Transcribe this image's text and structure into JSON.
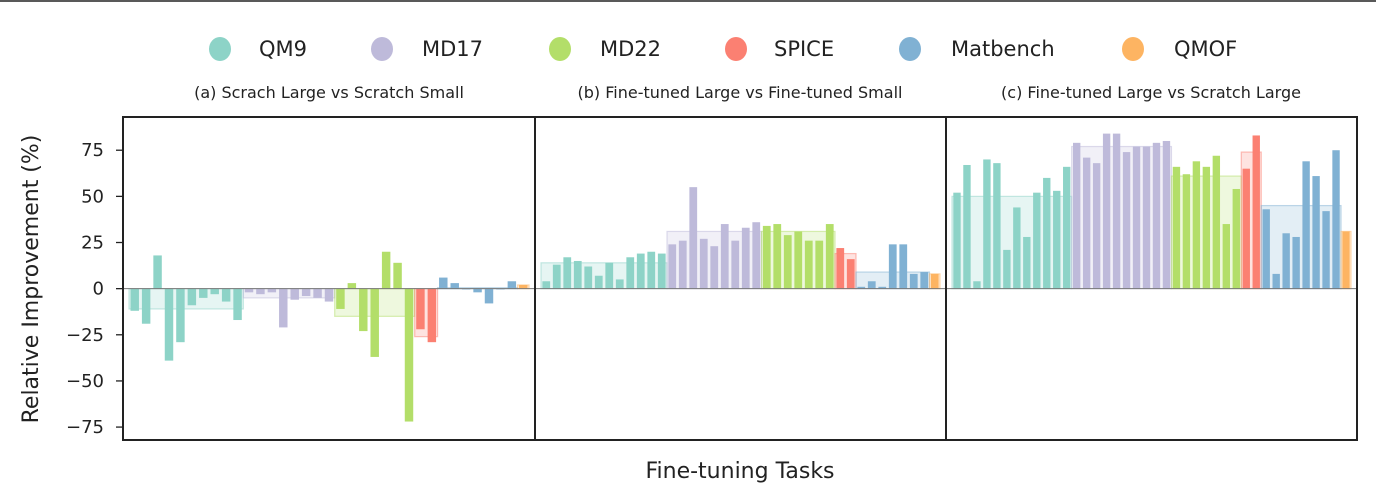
{
  "chart_data": {
    "type": "bar",
    "ylabel": "Relative Improvement (%)",
    "xlabel": "Fine-tuning Tasks",
    "ylim": [
      -82,
      93
    ],
    "yticks": [
      75,
      50,
      25,
      0,
      -25,
      -50,
      -75
    ],
    "ytick_labels": [
      "75",
      "50",
      "25",
      "0",
      "−25",
      "−50",
      "−75"
    ],
    "legend_position": "top-center",
    "legend": [
      {
        "name": "QM9",
        "color": "#8dd3c7"
      },
      {
        "name": "MD17",
        "color": "#bebada"
      },
      {
        "name": "MD22",
        "color": "#b3de69"
      },
      {
        "name": "SPICE",
        "color": "#fb8072"
      },
      {
        "name": "Matbench",
        "color": "#80b1d3"
      },
      {
        "name": "QMOF",
        "color": "#fdb462"
      }
    ],
    "panels": [
      {
        "title": "(a) Scrach Large vs Scratch Small",
        "groups": [
          {
            "name": "QM9",
            "values": [
              -12,
              -19,
              18,
              -39,
              -29,
              -9,
              -5,
              -3,
              -7,
              -17
            ],
            "mean": -11
          },
          {
            "name": "MD17",
            "values": [
              -2,
              -3,
              -2,
              -21,
              -6,
              -4,
              -5,
              -7
            ],
            "mean": -5
          },
          {
            "name": "MD22",
            "values": [
              -11,
              3,
              -23,
              -37,
              20,
              14,
              -72
            ],
            "mean": -15
          },
          {
            "name": "SPICE",
            "values": [
              -22,
              -29
            ],
            "mean": -26
          },
          {
            "name": "Matbench",
            "values": [
              6,
              3,
              0,
              -2,
              -8,
              0,
              4
            ],
            "mean": 0.5
          },
          {
            "name": "QMOF",
            "values": [
              2
            ],
            "mean": 2
          }
        ]
      },
      {
        "title": "(b) Fine-tuned Large vs Fine-tuned Small",
        "groups": [
          {
            "name": "QM9",
            "values": [
              4,
              13,
              17,
              15,
              12,
              7,
              14,
              5,
              17,
              19,
              20,
              19
            ],
            "mean": 14
          },
          {
            "name": "MD17",
            "values": [
              24,
              26,
              55,
              27,
              23,
              35,
              26,
              33,
              36
            ],
            "mean": 31
          },
          {
            "name": "MD22",
            "values": [
              34,
              35,
              29,
              31,
              26,
              26,
              35
            ],
            "mean": 31
          },
          {
            "name": "SPICE",
            "values": [
              22,
              16
            ],
            "mean": 19
          },
          {
            "name": "Matbench",
            "values": [
              1,
              4,
              1,
              24,
              24,
              8,
              9
            ],
            "mean": 9
          },
          {
            "name": "QMOF",
            "values": [
              8
            ],
            "mean": 8
          }
        ]
      },
      {
        "title": "(c) Fine-tuned Large vs Scratch Large",
        "groups": [
          {
            "name": "QM9",
            "values": [
              52,
              67,
              4,
              70,
              68,
              21,
              44,
              28,
              52,
              60,
              53,
              66
            ],
            "mean": 50
          },
          {
            "name": "MD17",
            "values": [
              79,
              71,
              68,
              84,
              84,
              74,
              77,
              77,
              79,
              80
            ],
            "mean": 77
          },
          {
            "name": "MD22",
            "values": [
              66,
              62,
              69,
              66,
              72,
              35,
              54
            ],
            "mean": 61
          },
          {
            "name": "SPICE",
            "values": [
              65,
              83
            ],
            "mean": 74
          },
          {
            "name": "Matbench",
            "values": [
              43,
              8,
              30,
              28,
              69,
              61,
              42,
              75
            ],
            "mean": 45
          },
          {
            "name": "QMOF",
            "values": [
              31
            ],
            "mean": 31
          }
        ]
      }
    ]
  }
}
